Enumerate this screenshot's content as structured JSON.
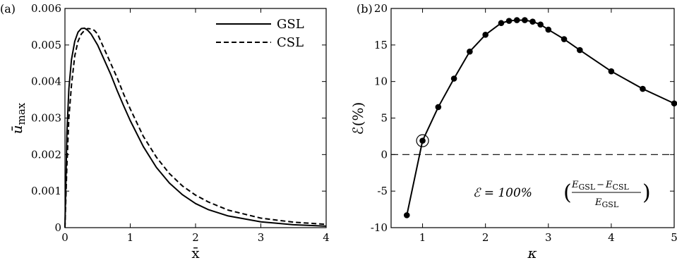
{
  "chart_data": [
    {
      "panel_label": "(a)",
      "type": "line",
      "xlabel": "x̄",
      "ylabel": "ū_max",
      "ylabel_main": "ū",
      "ylabel_sub": "max",
      "xlim": [
        0,
        4
      ],
      "ylim": [
        0,
        0.006
      ],
      "xticks": [
        0,
        1,
        2,
        3,
        4
      ],
      "yticks": [
        0,
        0.001,
        0.002,
        0.003,
        0.004,
        0.005,
        0.006
      ],
      "xtick_labels": [
        "0",
        "1",
        "2",
        "3",
        "4"
      ],
      "ytick_labels": [
        "0",
        "0.001",
        "0.002",
        "0.003",
        "0.004",
        "0.005",
        "0.006"
      ],
      "legend": "top-right",
      "grid": false,
      "series": [
        {
          "name": "GSL",
          "style": "solid",
          "x": [
            0,
            0.03,
            0.06,
            0.1,
            0.15,
            0.2,
            0.25,
            0.3,
            0.35,
            0.4,
            0.5,
            0.6,
            0.7,
            0.8,
            0.9,
            1.0,
            1.2,
            1.4,
            1.6,
            1.8,
            2.0,
            2.2,
            2.5,
            3.0,
            3.5,
            4.0
          ],
          "y": [
            0,
            0.0026,
            0.0038,
            0.0046,
            0.0051,
            0.00535,
            0.00545,
            0.00546,
            0.0054,
            0.0053,
            0.005,
            0.0046,
            0.0042,
            0.00375,
            0.00333,
            0.00293,
            0.00222,
            0.00165,
            0.00122,
            0.0009,
            0.00066,
            0.00049,
            0.00032,
            0.00016,
            8e-05,
            4e-05
          ]
        },
        {
          "name": "CSL",
          "style": "dashed",
          "x": [
            0,
            0.03,
            0.06,
            0.1,
            0.15,
            0.2,
            0.25,
            0.3,
            0.35,
            0.4,
            0.45,
            0.5,
            0.6,
            0.7,
            0.8,
            0.9,
            1.0,
            1.2,
            1.4,
            1.6,
            1.8,
            2.0,
            2.2,
            2.5,
            3.0,
            3.5,
            4.0
          ],
          "y": [
            0,
            0.0017,
            0.003,
            0.0039,
            0.0047,
            0.0051,
            0.0053,
            0.0054,
            0.00545,
            0.00544,
            0.0054,
            0.0053,
            0.0049,
            0.0045,
            0.0041,
            0.00365,
            0.00325,
            0.0025,
            0.00193,
            0.00148,
            0.00114,
            0.00089,
            0.0007,
            0.00048,
            0.00026,
            0.00015,
            9e-05
          ]
        }
      ]
    },
    {
      "panel_label": "(b)",
      "type": "line",
      "xlabel": "κ",
      "ylabel": "ℰ(%)",
      "xlim": [
        0.5,
        5
      ],
      "ylim": [
        -10,
        20
      ],
      "xticks": [
        1,
        2,
        3,
        4,
        5
      ],
      "yticks": [
        -10,
        -5,
        0,
        5,
        10,
        15,
        20
      ],
      "xtick_labels": [
        "1",
        "2",
        "3",
        "4",
        "5"
      ],
      "ytick_labels": [
        "-10",
        "-5",
        "0",
        "5",
        "10",
        "15",
        "20"
      ],
      "grid": false,
      "reference_line_y": 0,
      "highlighted_point": [
        1.0,
        1.9
      ],
      "annotation": {
        "lhs": "ℰ = 100%",
        "numerator_a": "E",
        "numerator_a_sub": "GSL",
        "numerator_minus": "−",
        "numerator_b": "E",
        "numerator_b_sub": "CSL",
        "denominator": "E",
        "denominator_sub": "GSL"
      },
      "series": [
        {
          "marker": "circle",
          "style": "solid",
          "x": [
            0.75,
            1.0,
            1.25,
            1.5,
            1.75,
            2.0,
            2.25,
            2.375,
            2.5,
            2.625,
            2.75,
            2.875,
            3.0,
            3.25,
            3.5,
            4.0,
            4.5,
            5.0
          ],
          "y": [
            -8.3,
            1.9,
            6.5,
            10.4,
            14.1,
            16.4,
            18.0,
            18.3,
            18.4,
            18.4,
            18.2,
            17.8,
            17.1,
            15.8,
            14.3,
            11.4,
            9.0,
            7.0
          ]
        }
      ]
    }
  ]
}
